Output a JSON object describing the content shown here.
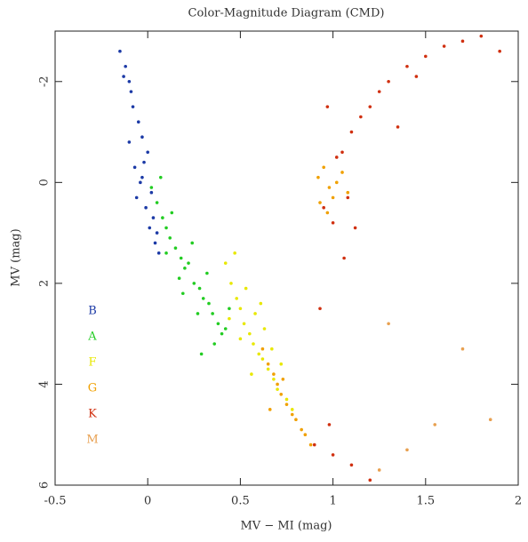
{
  "chart_data": {
    "type": "scatter",
    "title": "Color-Magnitude Diagram (CMD)",
    "x_label": "MV − MI (mag)",
    "y_label": "MV (mag)",
    "xlim": [
      -0.5,
      2
    ],
    "ylim": [
      -3,
      6
    ],
    "y_inverted": true,
    "xticks": [
      -0.5,
      0,
      0.5,
      1,
      1.5,
      2
    ],
    "yticks": [
      -2,
      0,
      2,
      4,
      6
    ],
    "legend": "lower left",
    "series": [
      {
        "name": "B",
        "color": "#1c3aa6",
        "x": [
          -0.15,
          -0.12,
          -0.1,
          -0.08,
          -0.05,
          -0.03,
          0,
          -0.02,
          -0.1,
          -0.07,
          -0.04,
          0.02,
          -0.06,
          -0.01,
          0.03,
          0.05,
          -0.09,
          -0.13,
          0.01,
          0.04,
          -0.03,
          0.06
        ],
        "values": [
          -2.6,
          -2.3,
          -2.0,
          -1.5,
          -1.2,
          -0.9,
          -0.6,
          -0.4,
          -0.8,
          -0.3,
          0,
          0.2,
          0.3,
          0.5,
          0.7,
          1,
          -1.8,
          -2.1,
          0.9,
          1.2,
          -0.1,
          1.4
        ]
      },
      {
        "name": "A",
        "color": "#22cc22",
        "x": [
          0.02,
          0.05,
          0.08,
          0.1,
          0.12,
          0.15,
          0.18,
          0.2,
          0.22,
          0.25,
          0.28,
          0.3,
          0.33,
          0.35,
          0.38,
          0.4,
          0.07,
          0.13,
          0.17,
          0.24,
          0.27,
          0.32,
          0.36,
          0.42,
          0.1,
          0.19,
          0.29,
          0.44
        ],
        "values": [
          0.1,
          0.4,
          0.7,
          0.9,
          1.1,
          1.3,
          1.5,
          1.7,
          1.6,
          2.0,
          2.1,
          2.3,
          2.4,
          2.6,
          2.8,
          3.0,
          -0.1,
          0.6,
          1.9,
          1.2,
          2.6,
          1.8,
          3.2,
          2.9,
          1.4,
          2.2,
          3.4,
          2.5
        ]
      },
      {
        "name": "F",
        "color": "#e8e800",
        "x": [
          0.42,
          0.45,
          0.48,
          0.5,
          0.52,
          0.55,
          0.57,
          0.6,
          0.62,
          0.65,
          0.68,
          0.7,
          0.47,
          0.53,
          0.58,
          0.63,
          0.67,
          0.72,
          0.75,
          0.5,
          0.56,
          0.61,
          0.44,
          0.78
        ],
        "values": [
          1.6,
          2.0,
          2.3,
          2.5,
          2.8,
          3.0,
          3.2,
          3.4,
          3.5,
          3.7,
          3.9,
          4.1,
          1.4,
          2.1,
          2.6,
          2.9,
          3.3,
          3.6,
          4.3,
          3.1,
          3.8,
          2.4,
          2.7,
          4.5
        ]
      },
      {
        "name": "G",
        "color": "#f0a000",
        "x": [
          0.62,
          0.65,
          0.68,
          0.7,
          0.72,
          0.75,
          0.78,
          0.8,
          0.83,
          0.85,
          0.88,
          0.92,
          0.95,
          0.98,
          1.0,
          1.02,
          1.05,
          0.97,
          1.08,
          0.93,
          0.73,
          0.66
        ],
        "values": [
          3.3,
          3.6,
          3.8,
          4.0,
          4.2,
          4.4,
          4.6,
          4.7,
          4.9,
          5.0,
          5.2,
          -0.1,
          -0.3,
          0.1,
          0.3,
          0,
          -0.2,
          0.6,
          0.2,
          0.4,
          3.9,
          4.5
        ]
      },
      {
        "name": "K",
        "color": "#d03010",
        "x": [
          0.95,
          1.0,
          1.05,
          1.1,
          1.15,
          1.2,
          1.25,
          1.3,
          1.4,
          1.5,
          1.6,
          1.7,
          1.8,
          1.9,
          1.02,
          1.08,
          0.97,
          1.12,
          0.9,
          1.0,
          1.1,
          1.2,
          1.35,
          1.45,
          0.93,
          1.06,
          0.98
        ],
        "values": [
          0.5,
          0.8,
          -0.6,
          -1,
          -1.3,
          -1.5,
          -1.8,
          -2.0,
          -2.3,
          -2.5,
          -2.7,
          -2.8,
          -2.9,
          -2.6,
          -0.5,
          0.3,
          -1.5,
          0.9,
          5.2,
          5.4,
          5.6,
          5.9,
          -1.1,
          -2.1,
          2.5,
          1.5,
          4.8
        ]
      },
      {
        "name": "M",
        "color": "#e8a050",
        "x": [
          1.25,
          1.4,
          1.55,
          1.7,
          1.85,
          1.3
        ],
        "values": [
          5.7,
          5.3,
          4.8,
          3.3,
          4.7,
          2.8
        ]
      }
    ]
  }
}
